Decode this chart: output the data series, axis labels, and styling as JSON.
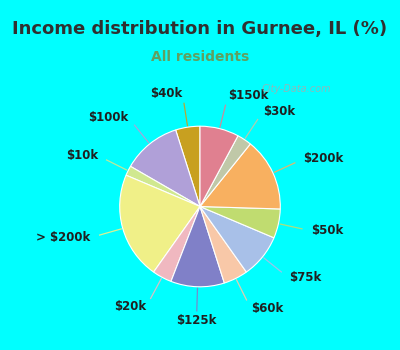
{
  "title": "Income distribution in Gurnee, IL (%)",
  "subtitle": "All residents",
  "background_color": "#00ffff",
  "chart_bg_left": "#c8ecd4",
  "chart_bg_right": "#e8f8f0",
  "watermark": "City-Data.com",
  "labels": [
    "$40k",
    "$100k",
    "$10k",
    "> $200k",
    "$20k",
    "$125k",
    "$60k",
    "$75k",
    "$50k",
    "$200k",
    "$30k",
    "$150k"
  ],
  "values": [
    5,
    12,
    2,
    22,
    4,
    11,
    5,
    9,
    6,
    15,
    3,
    8
  ],
  "colors": [
    "#c8a020",
    "#b0a0d8",
    "#d0e890",
    "#f0f088",
    "#f0b8c0",
    "#8080c8",
    "#f8c8a8",
    "#a8c0e8",
    "#c0dc70",
    "#f8b060",
    "#c0c8a8",
    "#e08090"
  ],
  "startangle": 90,
  "label_fontsize": 8.5,
  "title_fontsize": 13,
  "subtitle_fontsize": 10,
  "title_color": "#303030",
  "subtitle_color": "#60a060"
}
